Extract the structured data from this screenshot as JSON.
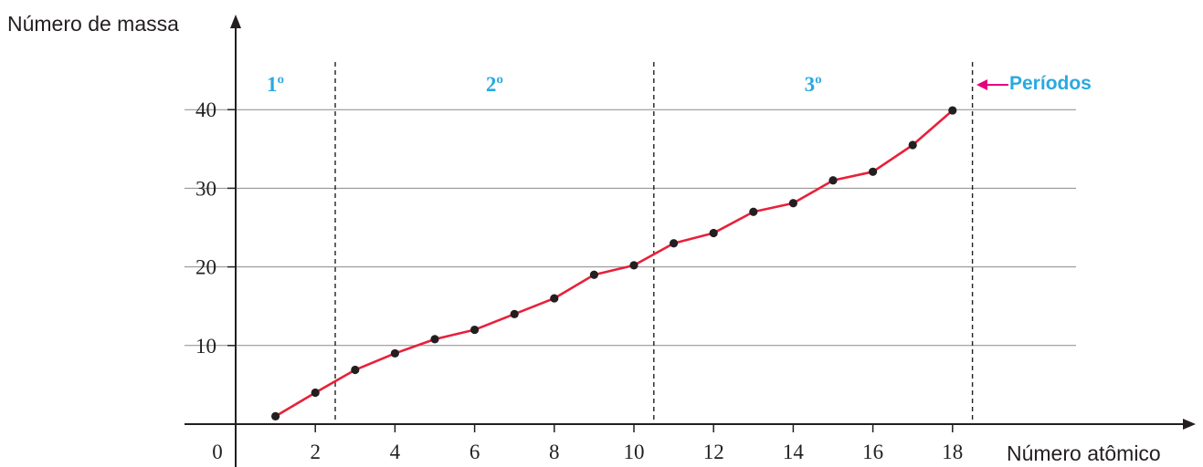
{
  "chart_data": {
    "type": "line",
    "title": "",
    "ylabel": "Número de massa",
    "xlabel": "Número atômico",
    "origin_label": "0",
    "xlim": [
      0,
      20.2
    ],
    "ylim": [
      0,
      44
    ],
    "x_ticks": [
      2,
      4,
      6,
      8,
      10,
      12,
      14,
      16,
      18
    ],
    "y_ticks": [
      10,
      20,
      30,
      40
    ],
    "grid": "horizontal",
    "series": [
      {
        "x": [
          1,
          2,
          3,
          4,
          5,
          6,
          7,
          8,
          9,
          10,
          11,
          12,
          13,
          14,
          15,
          16,
          17,
          18
        ],
        "y": [
          1.0,
          4.0,
          6.9,
          9.0,
          10.8,
          12.0,
          14.0,
          16.0,
          19.0,
          20.2,
          23.0,
          24.3,
          27.0,
          28.1,
          31.0,
          32.1,
          35.5,
          39.9
        ]
      }
    ],
    "period_boundaries": [
      2.5,
      10.5,
      18.5
    ],
    "periods": [
      {
        "label": "1º",
        "x_center": 1.0
      },
      {
        "label": "2º",
        "x_center": 6.5
      },
      {
        "label": "3º",
        "x_center": 14.5
      }
    ],
    "periods_marker": "Períodos",
    "colors": {
      "line": "#e8203a",
      "points": "#231f20",
      "period_labels": "#29a9e1",
      "marker_arrow": "#e6007e",
      "marker_text": "#29a9e1",
      "grid": "#8a8a8a",
      "axes": "#231f20"
    }
  }
}
